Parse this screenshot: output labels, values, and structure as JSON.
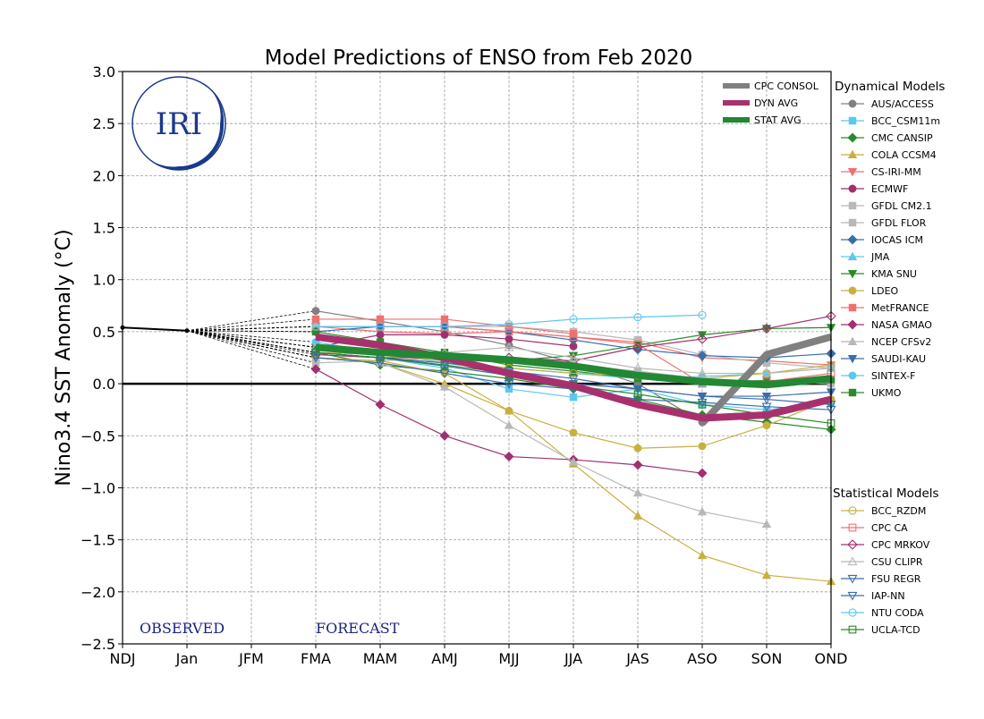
{
  "chart_data": {
    "type": "line",
    "title": "Model Predictions of ENSO from Feb 2020",
    "ylabel": "Nino3.4 SST Anomaly (°C)",
    "xlabel": "",
    "categories": [
      "NDJ",
      "Jan",
      "JFM",
      "FMA",
      "MAM",
      "AMJ",
      "MJJ",
      "JJA",
      "JAS",
      "ASO",
      "SON",
      "OND"
    ],
    "ylim": [
      -2.5,
      3.0
    ],
    "yticks": [
      -2.5,
      -2.0,
      -1.5,
      -1.0,
      -0.5,
      0.0,
      0.5,
      1.0,
      1.5,
      2.0,
      2.5,
      3.0
    ],
    "ytick_labels": [
      "−2.5",
      "−2.0",
      "−1.5",
      "−1.0",
      "−0.5",
      "0.0",
      "0.5",
      "1.0",
      "1.5",
      "2.0",
      "2.5",
      "3.0"
    ],
    "grid": true,
    "annotations": {
      "observed": "OBSERVED",
      "forecast": "FORECAST"
    },
    "logo_text": "IRI",
    "observed": [
      0.54,
      0.51
    ],
    "consensus": [
      {
        "name": "CPC CONSOL",
        "color": "#808080",
        "values": [
          null,
          null,
          null,
          null,
          null,
          null,
          null,
          null,
          null,
          -0.38,
          0.28,
          0.45
        ]
      },
      {
        "name": "DYN AVG",
        "color": "#a8306e",
        "values": [
          null,
          null,
          null,
          0.45,
          0.37,
          0.25,
          0.1,
          -0.02,
          -0.2,
          -0.33,
          -0.3,
          -0.15
        ]
      },
      {
        "name": "STAT AVG",
        "color": "#228833",
        "values": [
          null,
          null,
          null,
          0.35,
          0.3,
          0.27,
          0.23,
          0.17,
          0.08,
          0.02,
          -0.01,
          0.05
        ]
      }
    ],
    "legend_dynamical_title": "Dynamical Models",
    "legend_statistical_title": "Statistical Models",
    "series": [
      {
        "name": "AUS/ACCESS",
        "group": "dyn",
        "color": "#808080",
        "marker": "circle",
        "filled": true,
        "values": [
          null,
          null,
          null,
          0.7,
          0.6,
          0.5,
          0.37,
          0.2,
          0.0,
          -0.37,
          null,
          null
        ]
      },
      {
        "name": "BCC_CSM11m",
        "group": "dyn",
        "color": "#5bc8f0",
        "marker": "square",
        "filled": true,
        "values": [
          null,
          null,
          null,
          0.3,
          0.25,
          0.15,
          -0.05,
          -0.13,
          -0.05,
          -0.2,
          -0.25,
          -0.18
        ]
      },
      {
        "name": "CMC CANSIP",
        "group": "dyn",
        "color": "#2a8a2a",
        "marker": "diamond",
        "filled": true,
        "values": [
          null,
          null,
          null,
          0.3,
          0.18,
          0.12,
          0.05,
          -0.05,
          -0.15,
          -0.3,
          -0.37,
          -0.44
        ]
      },
      {
        "name": "COLA CCSM4",
        "group": "dyn",
        "color": "#c8b040",
        "marker": "triangle",
        "filled": true,
        "values": [
          null,
          null,
          null,
          0.25,
          0.2,
          0.0,
          -0.26,
          -0.77,
          -1.27,
          -1.65,
          -1.84,
          -1.9
        ]
      },
      {
        "name": "CS-IRI-MM",
        "group": "dyn",
        "color": "#f07070",
        "marker": "triangle-down",
        "filled": true,
        "values": [
          null,
          null,
          null,
          0.55,
          0.5,
          0.48,
          0.5,
          0.45,
          0.4,
          0.25,
          0.22,
          0.18
        ]
      },
      {
        "name": "ECMWF",
        "group": "dyn",
        "color": "#a03070",
        "marker": "circle",
        "filled": true,
        "values": [
          null,
          null,
          null,
          0.35,
          0.47,
          0.47,
          0.43,
          0.36,
          null,
          null,
          null,
          null
        ]
      },
      {
        "name": "GFDL CM2.1",
        "group": "dyn",
        "color": "#b8b8b8",
        "marker": "square",
        "filled": true,
        "values": [
          null,
          null,
          null,
          0.55,
          0.55,
          0.55,
          0.55,
          0.5,
          0.42,
          0.28,
          0.2,
          0.15
        ]
      },
      {
        "name": "GFDL FLOR",
        "group": "dyn",
        "color": "#b8b8b8",
        "marker": "square",
        "filled": true,
        "values": [
          null,
          null,
          null,
          0.2,
          0.22,
          0.25,
          0.22,
          0.18,
          0.12,
          0.05,
          0.02,
          0.0
        ]
      },
      {
        "name": "IOCAS ICM",
        "group": "dyn",
        "color": "#3a6ea8",
        "marker": "diamond",
        "filled": true,
        "values": [
          null,
          null,
          null,
          0.5,
          0.55,
          0.55,
          0.5,
          0.42,
          0.33,
          0.27,
          0.25,
          0.29
        ]
      },
      {
        "name": "JMA",
        "group": "dyn",
        "color": "#5bc8f0",
        "marker": "triangle",
        "filled": true,
        "values": [
          null,
          null,
          null,
          0.3,
          0.25,
          0.2,
          0.15,
          0.1,
          0.05,
          0.0,
          null,
          null
        ]
      },
      {
        "name": "KMA SNU",
        "group": "dyn",
        "color": "#2a8a2a",
        "marker": "triangle-down",
        "filled": true,
        "values": [
          null,
          null,
          null,
          0.35,
          0.3,
          0.27,
          0.22,
          0.27,
          0.37,
          0.47,
          0.53,
          0.54
        ]
      },
      {
        "name": "LDEO",
        "group": "dyn",
        "color": "#c8b040",
        "marker": "circle",
        "filled": true,
        "values": [
          null,
          null,
          null,
          0.25,
          0.22,
          0.1,
          -0.26,
          -0.47,
          -0.62,
          -0.6,
          -0.4,
          -0.15
        ]
      },
      {
        "name": "MetFRANCE",
        "group": "dyn",
        "color": "#f07070",
        "marker": "square",
        "filled": true,
        "values": [
          null,
          null,
          null,
          0.62,
          0.62,
          0.62,
          0.55,
          0.48,
          null,
          null,
          null,
          null
        ]
      },
      {
        "name": "NASA GMAO",
        "group": "dyn",
        "color": "#a03070",
        "marker": "diamond",
        "filled": true,
        "values": [
          null,
          null,
          null,
          0.14,
          -0.2,
          -0.5,
          -0.7,
          -0.73,
          -0.78,
          -0.86,
          null,
          null
        ]
      },
      {
        "name": "NCEP CFSv2",
        "group": "dyn",
        "color": "#b8b8b8",
        "marker": "triangle",
        "filled": true,
        "values": [
          null,
          null,
          null,
          0.25,
          0.2,
          -0.03,
          -0.4,
          -0.75,
          -1.05,
          -1.23,
          -1.35,
          null
        ]
      },
      {
        "name": "SAUDI-KAU",
        "group": "dyn",
        "color": "#3a6ea8",
        "marker": "triangle-down",
        "filled": true,
        "values": [
          null,
          null,
          null,
          0.3,
          0.25,
          0.17,
          0.08,
          0.0,
          -0.05,
          -0.12,
          -0.12,
          -0.08
        ]
      },
      {
        "name": "SINTEX-F",
        "group": "dyn",
        "color": "#5bc8f0",
        "marker": "circle",
        "filled": true,
        "values": [
          null,
          null,
          null,
          0.4,
          0.3,
          0.2,
          0.15,
          0.1,
          0.05,
          0.07,
          0.1,
          0.15
        ]
      },
      {
        "name": "UKMO",
        "group": "dyn",
        "color": "#2a8a2a",
        "marker": "square",
        "filled": true,
        "values": [
          null,
          null,
          null,
          0.5,
          0.4,
          0.3,
          0.18,
          0.12,
          0.05,
          0.02,
          0.03,
          0.04
        ]
      },
      {
        "name": "BCC_RZDM",
        "group": "stat",
        "color": "#c8b040",
        "marker": "circle",
        "filled": false,
        "values": [
          null,
          null,
          null,
          0.3,
          0.28,
          0.22,
          0.15,
          0.1,
          0.08,
          0.05,
          0.1,
          0.18
        ]
      },
      {
        "name": "CPC CA",
        "group": "stat",
        "color": "#f07070",
        "marker": "square",
        "filled": false,
        "values": [
          null,
          null,
          null,
          0.55,
          0.55,
          0.55,
          0.5,
          0.45,
          0.38,
          0.0,
          0.02,
          0.1
        ]
      },
      {
        "name": "CPC MRKOV",
        "group": "stat",
        "color": "#a03070",
        "marker": "diamond",
        "filled": false,
        "values": [
          null,
          null,
          null,
          0.28,
          0.25,
          0.25,
          0.25,
          0.22,
          0.35,
          0.43,
          0.53,
          0.65
        ]
      },
      {
        "name": "CSU CLIPR",
        "group": "stat",
        "color": "#b8b8b8",
        "marker": "triangle",
        "filled": false,
        "values": [
          null,
          null,
          null,
          0.35,
          0.32,
          0.3,
          0.35,
          0.25,
          0.15,
          0.1,
          0.1,
          0.15
        ]
      },
      {
        "name": "FSU REGR",
        "group": "stat",
        "color": "#3a6ea8",
        "marker": "triangle-down",
        "filled": false,
        "values": [
          null,
          null,
          null,
          0.25,
          0.2,
          0.1,
          0.0,
          -0.05,
          -0.15,
          -0.18,
          -0.22,
          -0.25
        ]
      },
      {
        "name": "IAP-NN",
        "group": "stat",
        "color": "#3a6ea8",
        "marker": "triangle-down",
        "filled": false,
        "values": [
          null,
          null,
          null,
          0.3,
          0.25,
          0.2,
          0.12,
          0.05,
          -0.05,
          -0.12,
          -0.15,
          -0.2
        ]
      },
      {
        "name": "NTU CODA",
        "group": "stat",
        "color": "#5bc8f0",
        "marker": "circle",
        "filled": false,
        "values": [
          null,
          null,
          null,
          0.55,
          0.55,
          0.55,
          0.57,
          0.62,
          0.64,
          0.66,
          null,
          null
        ]
      },
      {
        "name": "UCLA-TCD",
        "group": "stat",
        "color": "#2a8a2a",
        "marker": "square",
        "filled": false,
        "values": [
          null,
          null,
          null,
          0.3,
          0.25,
          0.18,
          0.1,
          -0.02,
          -0.1,
          -0.2,
          -0.3,
          -0.38
        ]
      }
    ]
  }
}
